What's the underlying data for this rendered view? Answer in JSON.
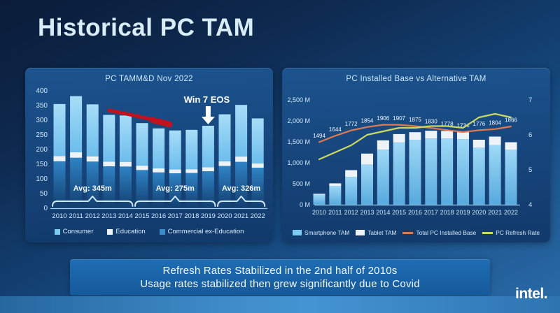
{
  "slide": {
    "title": "Historical PC TAM",
    "banner_line1": "Refresh Rates Stabilized in the 2nd half of 2010s",
    "banner_line2": "Usage rates stabilized then grew significantly due to Covid",
    "brand": "intel."
  },
  "colors": {
    "background_top": "#0a1c38",
    "background_bottom": "#2b6ca9",
    "consumer": "#7ecbf2",
    "education": "#eef3f8",
    "commercial": "#3c8cc9",
    "smartphone_tam": "#7ecbf2",
    "tablet_tam": "#eef3f8",
    "total_pc_installed_base": "#e07a50",
    "pc_refresh_rate": "#ccd960",
    "red_trend_marker": "#c1121f",
    "banner_blue": "#1e6db4"
  },
  "chart_data": [
    {
      "type": "bar",
      "title": "PC TAMM&D Nov 2022",
      "stacked": true,
      "unit": "millions",
      "categories": [
        "2010",
        "2011",
        "2012",
        "2013",
        "2014",
        "2015",
        "2016",
        "2017",
        "2018",
        "2019",
        "2020",
        "2021",
        "2022"
      ],
      "series": [
        {
          "name": "Commercial ex-Education",
          "values": [
            160,
            172,
            159,
            143,
            142,
            130,
            122,
            119,
            120,
            126,
            144,
            158,
            138
          ]
        },
        {
          "name": "Education",
          "values": [
            18,
            19,
            18,
            16,
            16,
            15,
            14,
            13,
            13,
            14,
            16,
            18,
            15
          ]
        },
        {
          "name": "Consumer",
          "values": [
            177,
            191,
            177,
            159,
            158,
            145,
            136,
            133,
            134,
            141,
            160,
            176,
            153
          ]
        }
      ],
      "totals": [
        355,
        382,
        354,
        318,
        316,
        290,
        272,
        265,
        267,
        281,
        320,
        352,
        306
      ],
      "ylim": [
        0,
        400
      ],
      "ytick_step": 50,
      "grid": false,
      "legend_position": "bottom",
      "legend": [
        "Consumer",
        "Education",
        "Commercial ex-Education"
      ],
      "annotations": [
        {
          "type": "avg",
          "label": "Avg: 345m",
          "from": "2010",
          "to": "2014"
        },
        {
          "type": "avg",
          "label": "Avg: 275m",
          "from": "2015",
          "to": "2019"
        },
        {
          "type": "avg",
          "label": "Avg: 326m",
          "from": "2020",
          "to": "2022"
        },
        {
          "type": "event",
          "label": "Win 7 EOS",
          "year": "2019"
        },
        {
          "type": "trend",
          "label": "decline-marker",
          "from": "2013",
          "to": "2016"
        }
      ]
    },
    {
      "type": "combo",
      "title": "PC Installed Base vs Alternative TAM",
      "categories": [
        "2010",
        "2011",
        "2012",
        "2013",
        "2014",
        "2015",
        "2016",
        "2017",
        "2018",
        "2019",
        "2020",
        "2021",
        "2022"
      ],
      "bar_series": [
        {
          "name": "Smartphone TAM",
          "values": [
            240,
            450,
            665,
            960,
            1315,
            1485,
            1545,
            1580,
            1580,
            1565,
            1360,
            1425,
            1310
          ]
        },
        {
          "name": "Tablet TAM",
          "values": [
            20,
            60,
            160,
            260,
            220,
            200,
            185,
            185,
            180,
            170,
            190,
            200,
            180
          ]
        }
      ],
      "line_series": [
        {
          "name": "Total PC Installed Base",
          "axis": "left",
          "show_labels": true,
          "values": [
            1494,
            1644,
            1772,
            1854,
            1906,
            1907,
            1875,
            1830,
            1778,
            1734,
            1776,
            1804,
            1866
          ]
        },
        {
          "name": "PC Refresh Rate",
          "axis": "right",
          "values": [
            5.3,
            5.5,
            5.7,
            6.0,
            6.1,
            6.2,
            6.2,
            6.25,
            6.25,
            6.2,
            6.5,
            6.6,
            6.5
          ]
        }
      ],
      "ylim_left": [
        0,
        2500
      ],
      "yticks_left": [
        "0 M",
        "500 M",
        "1,000 M",
        "1,500 M",
        "2,000 M",
        "2,500 M"
      ],
      "ylim_right": [
        4,
        7
      ],
      "yticks_right": [
        4,
        5,
        6,
        7
      ],
      "grid": false,
      "legend_position": "bottom"
    }
  ]
}
